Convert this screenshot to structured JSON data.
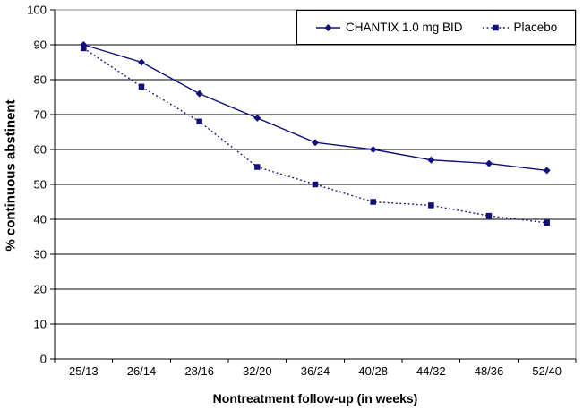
{
  "chart_data": {
    "type": "line",
    "title": "",
    "xlabel": "Nontreatment follow-up (in weeks)",
    "ylabel": "% continuous abstinent",
    "categories": [
      "25/13",
      "26/14",
      "28/16",
      "32/20",
      "36/24",
      "40/28",
      "44/32",
      "48/36",
      "52/40"
    ],
    "series": [
      {
        "name": "CHANTIX 1.0 mg BID",
        "marker": "diamond",
        "line_style": "solid",
        "color": "#10107a",
        "values": [
          90,
          85,
          76,
          69,
          62,
          60,
          57,
          56,
          54
        ]
      },
      {
        "name": "Placebo",
        "marker": "square",
        "line_style": "dotted",
        "color": "#10107a",
        "values": [
          89,
          78,
          68,
          55,
          50,
          45,
          44,
          41,
          39
        ]
      }
    ],
    "ylim": [
      0,
      100
    ],
    "ytick_step": 10,
    "yticks": [
      0,
      10,
      20,
      30,
      40,
      50,
      60,
      70,
      80,
      90,
      100
    ],
    "grid": "horizontal",
    "legend_position": "top-right-inside",
    "colors": {
      "series": "#10107a",
      "gridline": "#000000",
      "plot_border": "#888888",
      "text": "#000000",
      "background": "#ffffff"
    }
  }
}
